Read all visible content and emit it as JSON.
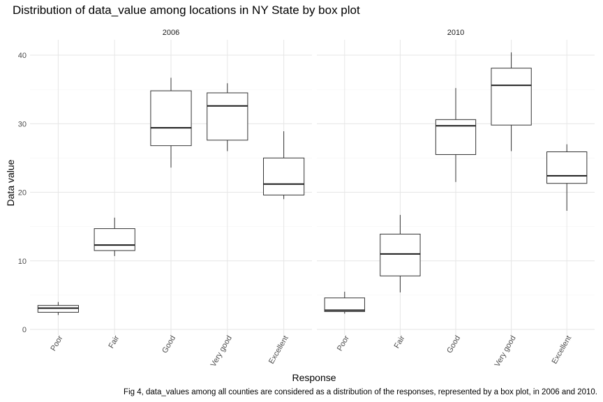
{
  "chart_data": {
    "type": "box",
    "title": "Distribution of data_value among locations in NY State by box plot",
    "xlabel": "Response",
    "ylabel": "Data value",
    "caption": "Fig 4, data_values among all counties are considered as a distribution of the responses, represented by a box plot, in 2006 and 2010.",
    "categories": [
      "Poor",
      "Fair",
      "Good",
      "Very good",
      "Excellent"
    ],
    "ylim": [
      0,
      41.5
    ],
    "yticks": [
      0,
      10,
      20,
      30,
      40
    ],
    "grid": true,
    "facets": [
      {
        "name": "2006",
        "boxes": [
          {
            "category": "Poor",
            "min": 2.1,
            "q1": 2.5,
            "median": 3.1,
            "q3": 3.5,
            "max": 4.0
          },
          {
            "category": "Fair",
            "min": 10.7,
            "q1": 11.5,
            "median": 12.3,
            "q3": 14.7,
            "max": 16.3
          },
          {
            "category": "Good",
            "min": 23.6,
            "q1": 26.8,
            "median": 29.4,
            "q3": 34.8,
            "max": 36.7
          },
          {
            "category": "Very good",
            "min": 26.0,
            "q1": 27.6,
            "median": 32.6,
            "q3": 34.5,
            "max": 35.9
          },
          {
            "category": "Excellent",
            "min": 19.0,
            "q1": 19.6,
            "median": 21.2,
            "q3": 25.0,
            "max": 28.9
          }
        ]
      },
      {
        "name": "2010",
        "boxes": [
          {
            "category": "Poor",
            "min": 2.3,
            "q1": 2.6,
            "median": 2.8,
            "q3": 4.6,
            "max": 5.5
          },
          {
            "category": "Fair",
            "min": 5.4,
            "q1": 7.8,
            "median": 11.0,
            "q3": 13.9,
            "max": 16.7
          },
          {
            "category": "Good",
            "min": 21.5,
            "q1": 25.5,
            "median": 29.7,
            "q3": 30.6,
            "max": 35.2
          },
          {
            "category": "Very good",
            "min": 26.0,
            "q1": 29.8,
            "median": 35.6,
            "q3": 38.1,
            "max": 40.4
          },
          {
            "category": "Excellent",
            "min": 17.3,
            "q1": 21.3,
            "median": 22.4,
            "q3": 25.9,
            "max": 27.0
          }
        ]
      }
    ]
  }
}
